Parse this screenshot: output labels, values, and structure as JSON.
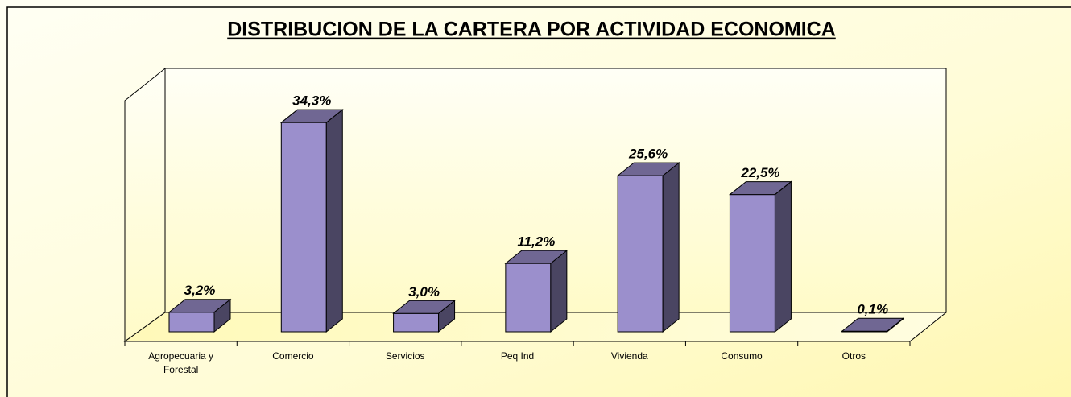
{
  "chart_data": {
    "type": "bar3d",
    "title": "DISTRIBUCION DE LA CARTERA POR ACTIVIDAD ECONOMICA",
    "categories": [
      "Agropecuaria y Forestal",
      "Comercio",
      "Servicios",
      "Peq Ind",
      "Vivienda",
      "Consumo",
      "Otros"
    ],
    "values": [
      3.2,
      34.3,
      3.0,
      11.2,
      25.6,
      22.5,
      0.1
    ],
    "value_labels": [
      "3,2%",
      "34,3%",
      "3,0%",
      "11,2%",
      "25,6%",
      "22,5%",
      "0,1%"
    ],
    "color": "#9b8fcc",
    "ylim": [
      0,
      40
    ]
  }
}
